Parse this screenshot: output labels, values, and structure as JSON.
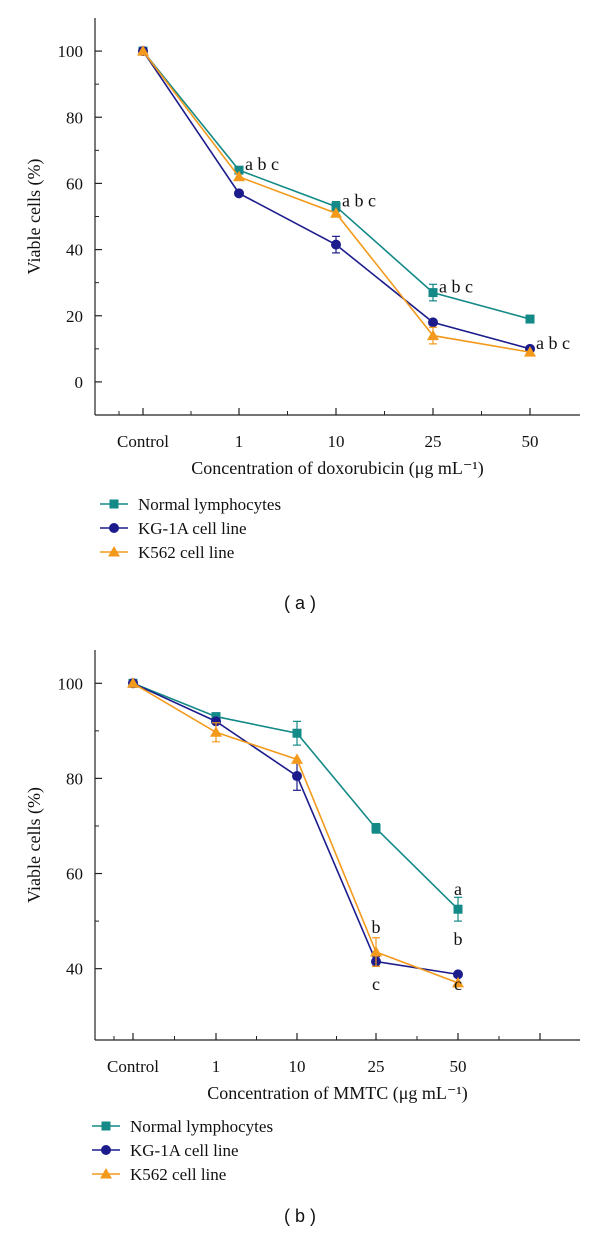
{
  "chart_data": [
    {
      "type": "line",
      "panel_label": "( a )",
      "xlabel": "Concentration of doxorubicin (μg mL⁻¹)",
      "ylabel": "Viable cells (%)",
      "categories": [
        "Control",
        "1",
        "10",
        "25",
        "50"
      ],
      "yticks": [
        0,
        20,
        40,
        60,
        80,
        100
      ],
      "ylim": [
        -10,
        110
      ],
      "series": [
        {
          "name": "Normal lymphocytes",
          "color": "#138a87",
          "marker": "square",
          "values": [
            100,
            64,
            53,
            27,
            19
          ],
          "errors": [
            0,
            0,
            1.5,
            2.5,
            0
          ]
        },
        {
          "name": "KG-1A cell line",
          "color": "#1c1c8c",
          "marker": "circle",
          "values": [
            100,
            57,
            41.5,
            18,
            10
          ],
          "errors": [
            0,
            0,
            2.5,
            0,
            0
          ]
        },
        {
          "name": "K562 cell line",
          "color": "#f39a1c",
          "marker": "triangle",
          "values": [
            100,
            62,
            51,
            14,
            9
          ],
          "errors": [
            0,
            0,
            0,
            2.5,
            0
          ]
        }
      ],
      "annotations": [
        {
          "category": "1",
          "y": 64,
          "text": "a b c"
        },
        {
          "category": "10",
          "y": 53,
          "text": "a  b  c"
        },
        {
          "category": "25",
          "y": 27,
          "text": "a b c"
        },
        {
          "category": "50",
          "y": 10,
          "text": "a b c"
        }
      ]
    },
    {
      "type": "line",
      "panel_label": "( b )",
      "xlabel": "Concentration of MMTC (μg mL⁻¹)",
      "ylabel": "Viable cells (%)",
      "categories": [
        "Control",
        "1",
        "10",
        "25",
        "50"
      ],
      "yticks": [
        40,
        60,
        80,
        100
      ],
      "ylim": [
        25,
        107
      ],
      "series": [
        {
          "name": "Normal lymphocytes",
          "color": "#138a87",
          "marker": "square",
          "values": [
            100,
            93,
            89.5,
            69.5,
            52.5
          ],
          "errors": [
            0,
            0,
            2.5,
            1,
            2.5
          ]
        },
        {
          "name": "KG-1A cell line",
          "color": "#1c1c8c",
          "marker": "circle",
          "values": [
            100,
            92,
            80.5,
            41.5,
            38.8
          ],
          "errors": [
            0,
            0,
            3,
            1,
            0
          ]
        },
        {
          "name": "K562 cell line",
          "color": "#f39a1c",
          "marker": "triangle",
          "values": [
            100,
            89.7,
            84,
            43.5,
            37
          ],
          "errors": [
            0,
            2,
            0,
            3,
            0
          ]
        }
      ],
      "annotations": [
        {
          "category": "50",
          "y": 55.5,
          "text": "a"
        },
        {
          "category": "25",
          "y": 47.5,
          "text": "b"
        },
        {
          "category": "50",
          "y": 45,
          "text": "b"
        },
        {
          "category": "25",
          "y": 35.5,
          "text": "c"
        },
        {
          "category": "50",
          "y": 35.5,
          "text": "c"
        }
      ]
    }
  ]
}
